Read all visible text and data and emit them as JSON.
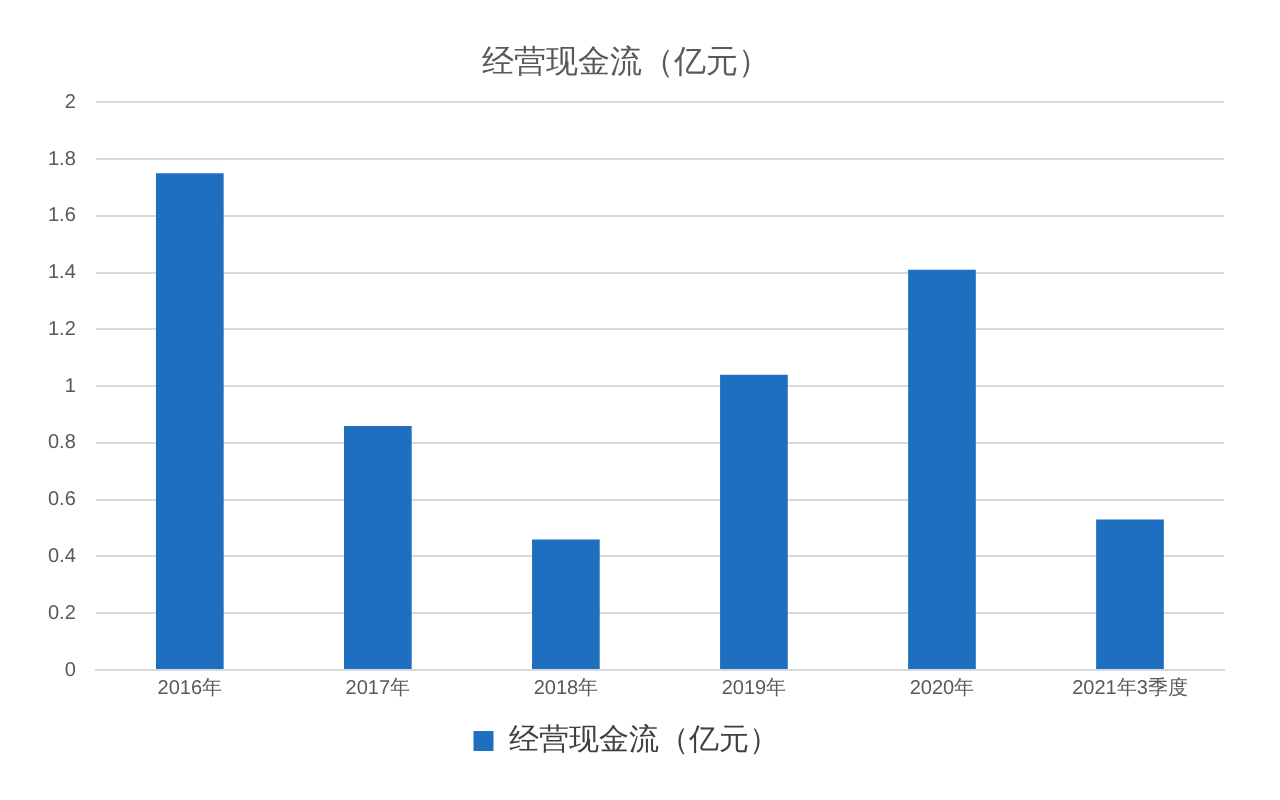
{
  "chart_data": {
    "type": "bar",
    "title": "经营现金流（亿元）",
    "categories": [
      "2016年",
      "2017年",
      "2018年",
      "2019年",
      "2020年",
      "2021年3季度"
    ],
    "series": [
      {
        "name": "经营现金流（亿元）",
        "color": "#1f6fc0",
        "values": [
          1.75,
          0.86,
          0.46,
          1.04,
          1.41,
          0.53
        ]
      }
    ],
    "ylim": [
      0,
      2
    ],
    "yticks": [
      0,
      0.2,
      0.4,
      0.6,
      0.8,
      1,
      1.2,
      1.4,
      1.6,
      1.8,
      2
    ],
    "grid": "y",
    "legend": "bottom"
  }
}
